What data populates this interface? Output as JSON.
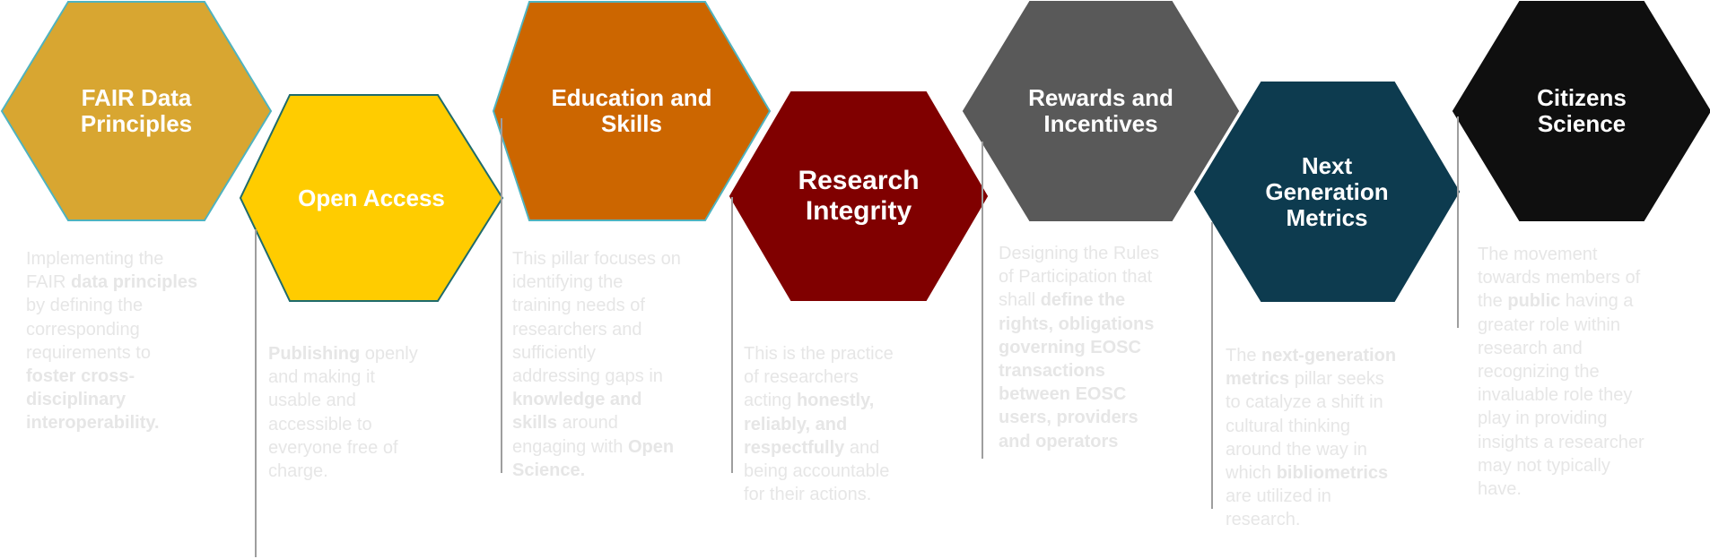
{
  "pillars": [
    {
      "id": "fair",
      "title": "FAIR Data\nPrinciples",
      "color": "#d8a631",
      "stroke": "#4fb3bf",
      "desc": [
        {
          "t": "Implementing the\nFAIR ",
          "b": false
        },
        {
          "t": "data principles",
          "b": true
        },
        {
          "t": "\nby defining the\ncorresponding\nrequirements to\n",
          "b": false
        },
        {
          "t": "foster cross-\ndisciplinary\ninteroperability.",
          "b": true
        }
      ]
    },
    {
      "id": "open-access",
      "title": "Open Access",
      "color": "#ffcc00",
      "stroke": "#1f6b6b",
      "desc": [
        {
          "t": "Publishing",
          "b": true
        },
        {
          "t": " openly\nand making it\nusable and\naccessible to\neveryone free of\ncharge.",
          "b": false
        }
      ]
    },
    {
      "id": "education",
      "title": "Education and\nSkills",
      "color": "#cc6600",
      "stroke": "#4fb3bf",
      "desc": [
        {
          "t": "This pillar focuses on\nidentifying the\ntraining needs of\nresearchers and\nsufficiently\naddressing gaps in\n",
          "b": false
        },
        {
          "t": "knowledge and\nskills",
          "b": true
        },
        {
          "t": " around\nengaging with ",
          "b": false
        },
        {
          "t": "Open\nScience.",
          "b": true
        }
      ]
    },
    {
      "id": "integrity",
      "title": "Research\nIntegrity",
      "color": "#800000",
      "stroke": "#800000",
      "desc": [
        {
          "t": "This is the practice\nof researchers\nacting ",
          "b": false
        },
        {
          "t": "honestly,\nreliably, and\nrespectfully",
          "b": true
        },
        {
          "t": " and\nbeing accountable\nfor their actions.",
          "b": false
        }
      ]
    },
    {
      "id": "rewards",
      "title": "Rewards and\nIncentives",
      "color": "#595959",
      "stroke": "#595959",
      "desc": [
        {
          "t": "Designing the Rules\nof Participation that\nshall ",
          "b": false
        },
        {
          "t": "define the\nrights, obligations\ngoverning EOSC\ntransactions\nbetween EOSC\nusers, providers\nand operators",
          "b": true
        }
      ]
    },
    {
      "id": "metrics",
      "title": "Next\nGeneration\nMetrics",
      "color": "#0d3b4f",
      "stroke": "#0d3b4f",
      "desc": [
        {
          "t": "The ",
          "b": false
        },
        {
          "t": "next-generation\nmetrics",
          "b": true
        },
        {
          "t": " pillar seeks\nto catalyze a shift in\ncultural thinking\naround the way in\nwhich ",
          "b": false
        },
        {
          "t": "bibliometrics",
          "b": true
        },
        {
          "t": "\nare utilized in\nresearch.",
          "b": false
        }
      ]
    },
    {
      "id": "citizens",
      "title": "Citizens\nScience",
      "color": "#0f0f0f",
      "stroke": "#0f0f0f",
      "desc": [
        {
          "t": "The movement\ntowards members of\nthe ",
          "b": false
        },
        {
          "t": "public",
          "b": true
        },
        {
          "t": " having a\ngreater role within\nresearch and\nrecognizing the\ninvaluable role they\nplay in providing\ninsights a researcher\nmay not typically\nhave.",
          "b": false
        }
      ]
    }
  ]
}
